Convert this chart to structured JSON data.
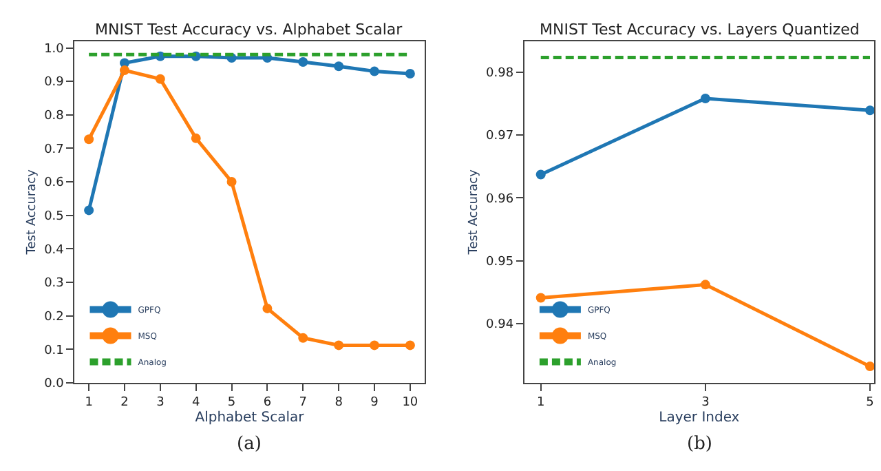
{
  "chart_data": [
    {
      "type": "line",
      "title": "MNIST Test Accuracy vs. Alphabet Scalar",
      "xlabel": "Alphabet Scalar",
      "ylabel": "Test Accuracy",
      "x": [
        1,
        2,
        3,
        4,
        5,
        6,
        7,
        8,
        9,
        10
      ],
      "xlim": [
        0.6,
        10.4
      ],
      "ylim": [
        0,
        1.02
      ],
      "xticks": [
        1,
        2,
        3,
        4,
        5,
        6,
        7,
        8,
        9,
        10
      ],
      "yticks": [
        {
          "value": 0,
          "label": "0.0"
        },
        0.1,
        0.2,
        0.3,
        0.4,
        0.5,
        0.6,
        0.7,
        0.8,
        0.9,
        {
          "value": 1,
          "label": "1.0"
        }
      ],
      "legend": "bottom left",
      "marker": "circle",
      "line_style": "solid",
      "annotations": [
        "(a)"
      ],
      "series": [
        {
          "name": "GPFQ",
          "color": "#1f77b4",
          "values": [
            0.515,
            0.955,
            0.975,
            0.975,
            0.97,
            0.97,
            0.958,
            0.945,
            0.93,
            0.923
          ]
        },
        {
          "name": "MSQ",
          "color": "#ff7f0e",
          "values": [
            0.727,
            0.933,
            0.907,
            0.73,
            0.6,
            0.222,
            0.134,
            0.112,
            0.112,
            0.112
          ]
        },
        {
          "name": "Analog",
          "color": "#2ca02c",
          "marker": "none",
          "line_style": "dashed",
          "values": [
            0.98,
            0.98,
            0.98,
            0.98,
            0.98,
            0.98,
            0.98,
            0.98,
            0.98,
            0.98
          ]
        }
      ]
    },
    {
      "type": "line",
      "title": "MNIST Test Accuracy vs. Layers Quantized",
      "xlabel": "Layer Index",
      "ylabel": "Test Accuracy",
      "x": [
        1,
        3,
        5
      ],
      "xlim": [
        0.8,
        5.05
      ],
      "ylim": [
        0.9306,
        0.9849
      ],
      "xticks": [
        1,
        3,
        5
      ],
      "yticks": [
        0.94,
        0.95,
        0.96,
        0.97,
        0.98
      ],
      "legend": "bottom left",
      "marker": "circle",
      "line_style": "solid",
      "annotations": [
        "(b)"
      ],
      "series": [
        {
          "name": "GPFQ",
          "color": "#1f77b4",
          "values": [
            0.9637,
            0.9758,
            0.9739
          ]
        },
        {
          "name": "MSQ",
          "color": "#ff7f0e",
          "values": [
            0.9441,
            0.9462,
            0.9332
          ]
        },
        {
          "name": "Analog",
          "color": "#2ca02c",
          "marker": "none",
          "line_style": "dashed",
          "values": [
            0.9823,
            0.9823,
            0.9823
          ]
        }
      ]
    }
  ]
}
